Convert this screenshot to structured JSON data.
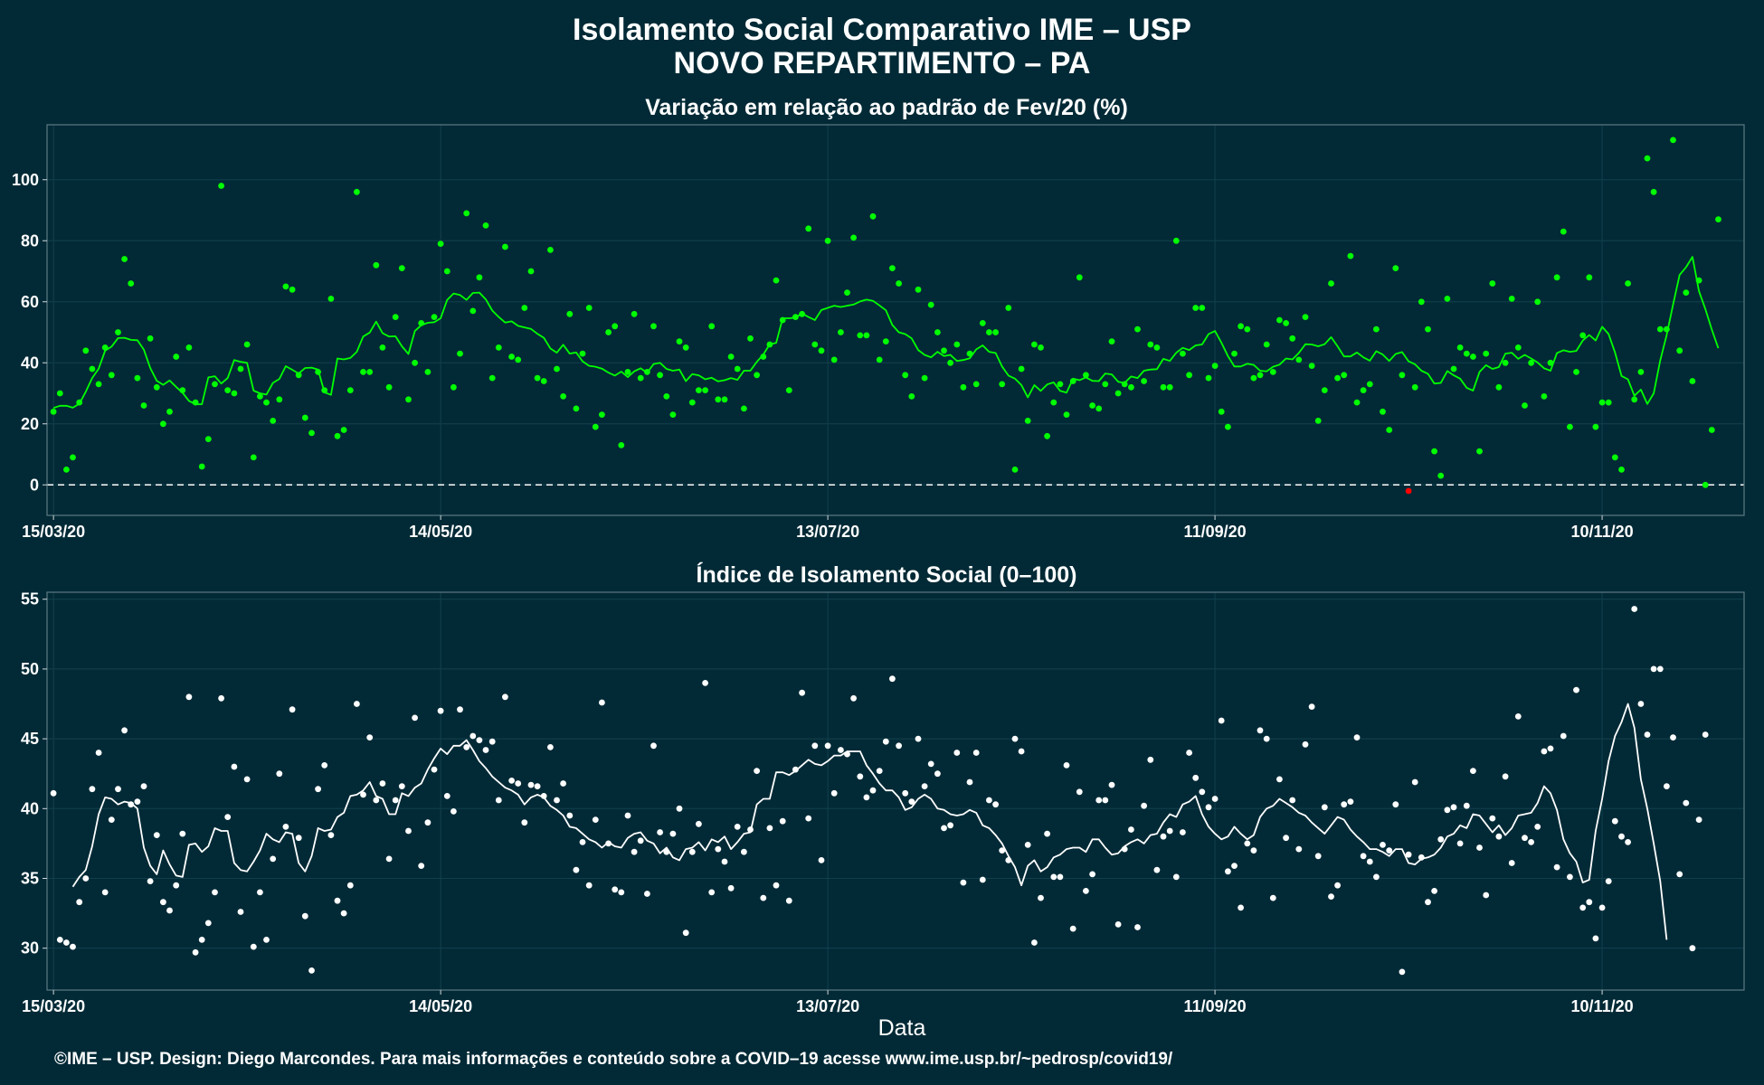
{
  "header": {
    "title_line1": "Isolamento Social Comparativo IME – USP",
    "title_line2": "NOVO REPARTIMENTO – PA"
  },
  "footer": {
    "credit": "©IME – USP. Design: Diego Marcondes. Para mais informações e conteúdo sobre a COVID–19 acesse www.ime.usp.br/~pedrosp/covid19/"
  },
  "colors": {
    "background": "#022a36",
    "panel_border": "#5d7a84",
    "grid": "#12404d",
    "variation_positive": "#00ff00",
    "variation_negative": "#ff0000",
    "index_series": "#ffffff"
  },
  "chart_data": [
    {
      "type": "scatter",
      "title": "Variação em relação ao padrão de Fev/20 (%)",
      "xlabel": "",
      "ylabel": "",
      "x_start": "2020-03-15",
      "x_end": "2020-11-30",
      "xlim": [
        "2020-03-14",
        "2020-12-02"
      ],
      "ylim": [
        -10,
        118
      ],
      "x_ticks": [
        "15/03/20",
        "14/05/20",
        "13/07/20",
        "11/09/20",
        "10/11/20"
      ],
      "y_ticks": [
        0,
        20,
        40,
        60,
        80,
        100
      ],
      "reference_line": 0,
      "series": [
        {
          "values": [
            24,
            30,
            5,
            9,
            27,
            44,
            38,
            33,
            45,
            36,
            50,
            74,
            66,
            35,
            26,
            48,
            32,
            20,
            24,
            42,
            31,
            45,
            27,
            6,
            15,
            33,
            98,
            31,
            30,
            38,
            46,
            9,
            29,
            27,
            21,
            28,
            65,
            64,
            36,
            22,
            17,
            37,
            31,
            61,
            16,
            18,
            31,
            96,
            37,
            37,
            72,
            45,
            32,
            55,
            71,
            28,
            40,
            53,
            37,
            55,
            79,
            70,
            32,
            43,
            89,
            57,
            68,
            85,
            35,
            45,
            78,
            42,
            41,
            58,
            70,
            35,
            34,
            77,
            38,
            29,
            56,
            25,
            43,
            58,
            19,
            23,
            50,
            52,
            13,
            37,
            56,
            35,
            37,
            52,
            36,
            29,
            23,
            47,
            45,
            27,
            31,
            31,
            52,
            28,
            28,
            42,
            38,
            25,
            48,
            36,
            42,
            46,
            67,
            54,
            31,
            55,
            56,
            84,
            46,
            44,
            80,
            41,
            50,
            63,
            81,
            49,
            49,
            88,
            41,
            47,
            71,
            66,
            36,
            29,
            64,
            35,
            59,
            50,
            44,
            40,
            46,
            32,
            43,
            33,
            53,
            50,
            50,
            33,
            58,
            5,
            38,
            21,
            46,
            45,
            16,
            27,
            33,
            23,
            34,
            68,
            36,
            26,
            25,
            33,
            47,
            30,
            33,
            32,
            51,
            34,
            46,
            45,
            32,
            32,
            80,
            43,
            36,
            58,
            58,
            35,
            39,
            24,
            19,
            43,
            52,
            51,
            35,
            36,
            46,
            37,
            54,
            53,
            48,
            41,
            55,
            39,
            21,
            31,
            66,
            35,
            36,
            75,
            27,
            31,
            33,
            51,
            24,
            18,
            71,
            36,
            -2,
            32,
            60,
            51,
            11,
            3,
            61,
            38,
            45,
            43,
            42,
            11,
            43,
            66,
            32,
            40,
            61,
            45,
            26,
            40,
            60,
            29,
            40,
            68,
            83,
            19,
            37,
            49,
            68,
            19,
            27,
            27,
            9,
            5,
            66,
            28,
            37,
            107,
            96,
            51,
            51,
            113,
            44,
            63,
            34,
            67,
            0,
            18,
            87
          ]
        },
        {
          "name": "",
          "type": "line",
          "values": [
            25.2,
            25.9,
            25.9,
            25.3,
            26.6,
            30.5,
            35.0,
            38.1,
            44.0,
            45.3,
            48.1,
            48.2,
            47.5,
            47.4,
            44.3,
            38.3,
            34.1,
            32.8,
            34.2,
            32.1,
            30.2,
            27.5,
            26.4,
            26.4,
            35.2,
            35.6,
            33.2,
            35.0,
            40.9,
            40.3,
            40.0,
            30.9,
            30.0,
            29.6,
            33.4,
            34.7,
            38.9,
            37.7,
            36.5,
            38.3,
            38.4,
            37.8,
            30.3,
            29.5,
            41.4,
            41.1,
            41.6,
            43.6,
            48.6,
            49.9,
            53.5,
            49.7,
            48.6,
            48.7,
            45.4,
            42.9,
            50.4,
            52.3,
            53.1,
            53.3,
            54.6,
            60.6,
            62.7,
            62.2,
            60.6,
            62.9,
            63.0,
            60.8,
            57.1,
            55.0,
            53.2,
            53.6,
            52.1,
            51.6,
            51.1,
            49.5,
            48.2,
            44.7,
            43.3,
            45.9,
            43.0,
            43.4,
            40.5,
            39.0,
            38.7,
            38.1,
            36.8,
            35.8,
            37.1,
            35.3,
            37.2,
            38.2,
            36.7,
            39.6,
            40.0,
            38.0,
            37.4,
            37.8,
            34.0,
            36.3,
            35.9,
            34.6,
            35.1,
            33.9,
            34.3,
            35.0,
            34.4,
            37.4,
            37.4,
            40.3,
            42.7,
            46.1,
            46.5,
            54.6,
            54.6,
            54.8,
            56.2,
            55.0,
            54.0,
            57.3,
            58.0,
            58.7,
            58.3,
            58.7,
            59.1,
            60.1,
            60.7,
            60.3,
            58.8,
            57.2,
            52.4,
            50.0,
            49.4,
            48.0,
            44.2,
            42.6,
            41.8,
            43.6,
            42.2,
            42.6,
            40.6,
            40.9,
            41.5,
            44.4,
            45.7,
            43.6,
            43.2,
            38.8,
            35.8,
            34.8,
            32.7,
            28.7,
            32.7,
            30.8,
            32.9,
            33.6,
            30.8,
            30.2,
            34.8,
            34.3,
            35.2,
            34.1,
            34.0,
            36.5,
            36.2,
            33.8,
            33.4,
            35.5,
            35.0,
            37.4,
            37.8,
            37.9,
            41.3,
            40.6,
            43.3,
            44.9,
            44.2,
            45.7,
            46.0,
            49.4,
            50.4,
            46.6,
            42.2,
            38.8,
            38.8,
            39.7,
            39.3,
            37.4,
            37.2,
            38.7,
            39.4,
            41.4,
            41.1,
            43.2,
            46.1,
            46.0,
            45.4,
            46.1,
            48.4,
            45.4,
            42.1,
            42.1,
            43.4,
            41.8,
            40.7,
            43.8,
            42.7,
            40.6,
            42.9,
            43.5,
            40.5,
            39.5,
            37.4,
            36.4,
            33.2,
            33.4,
            37.3,
            35.9,
            34.8,
            31.8,
            30.9,
            37.0,
            39.2,
            38.0,
            38.6,
            43.0,
            43.3,
            41.3,
            42.6,
            41.4,
            40.1,
            38.2,
            37.4,
            43.2,
            44.1,
            43.6,
            43.9,
            47.3,
            49.1,
            47.3,
            51.8,
            49.4,
            43.4,
            35.7,
            34.6,
            29.2,
            31.2,
            26.5,
            30.0,
            40.8,
            49.1,
            59.1,
            68.8,
            71.3,
            74.7,
            63.5,
            57.6,
            50.9,
            44.8
          ]
        }
      ]
    },
    {
      "type": "scatter",
      "title": "Índice de Isolamento Social (0–100)",
      "xlabel": "Data",
      "ylabel": "",
      "x_start": "2020-03-15",
      "x_end": "2020-11-30",
      "xlim": [
        "2020-03-14",
        "2020-12-02"
      ],
      "ylim": [
        27,
        55.5
      ],
      "x_ticks": [
        "15/03/20",
        "14/05/20",
        "13/07/20",
        "11/09/20",
        "10/11/20"
      ],
      "y_ticks": [
        30,
        35,
        40,
        45,
        50,
        55
      ],
      "series": [
        {
          "values": [
            41.1,
            30.6,
            30.4,
            30.1,
            33.3,
            35.0,
            41.4,
            44.0,
            34.0,
            39.2,
            41.4,
            45.6,
            40.3,
            40.5,
            41.6,
            34.8,
            38.1,
            33.3,
            32.7,
            34.5,
            38.2,
            48.0,
            29.7,
            30.6,
            31.8,
            34.0,
            47.9,
            39.4,
            43.0,
            32.6,
            42.1,
            30.1,
            34.0,
            30.6,
            36.4,
            42.5,
            38.7,
            47.1,
            37.9,
            32.3,
            28.4,
            41.4,
            43.1,
            38.1,
            33.4,
            32.5,
            34.5,
            47.5,
            41.0,
            45.1,
            40.6,
            41.8,
            36.4,
            40.6,
            41.6,
            38.4,
            46.5,
            35.9,
            39.0,
            42.8,
            47.0,
            40.9,
            39.8,
            47.1,
            44.4,
            45.2,
            44.9,
            44.2,
            44.8,
            40.6,
            48.0,
            42.0,
            41.8,
            39.0,
            41.7,
            41.6,
            40.9,
            44.4,
            40.6,
            41.8,
            39.5,
            35.6,
            37.6,
            34.5,
            39.2,
            47.6,
            37.5,
            34.2,
            34.0,
            39.5,
            36.9,
            37.7,
            33.9,
            44.5,
            38.3,
            36.9,
            38.2,
            40.0,
            31.1,
            36.9,
            38.9,
            49.0,
            34.0,
            37.1,
            36.2,
            34.3,
            38.7,
            36.9,
            38.5,
            42.7,
            33.6,
            38.6,
            34.5,
            39.1,
            33.4,
            42.8,
            48.3,
            39.3,
            44.5,
            36.3,
            44.5,
            41.1,
            44.2,
            43.9,
            47.9,
            42.3,
            40.8,
            41.3,
            42.7,
            44.8,
            49.3,
            44.5,
            41.1,
            40.5,
            45.0,
            41.6,
            43.2,
            42.5,
            38.6,
            38.8,
            44.0,
            34.7,
            41.9,
            44.0,
            34.9,
            40.6,
            40.3,
            37.0,
            36.3,
            45.0,
            44.1,
            37.4,
            30.4,
            33.6,
            38.2,
            35.1,
            35.1,
            43.1,
            31.4,
            41.2,
            34.1,
            35.3,
            40.6,
            40.6,
            41.7,
            31.7,
            37.1,
            38.5,
            31.5,
            40.2,
            43.5,
            35.6,
            38.0,
            38.4,
            35.1,
            38.3,
            44.0,
            42.2,
            41.2,
            40.1,
            40.7,
            46.3,
            35.5,
            35.9,
            32.9,
            37.5,
            37.0,
            45.6,
            45.0,
            33.6,
            42.1,
            37.9,
            40.6,
            37.1,
            44.6,
            47.3,
            36.6,
            40.1,
            33.7,
            34.5,
            40.3,
            40.5,
            45.1,
            36.6,
            36.2,
            35.1,
            37.4,
            37.0,
            40.3,
            28.3,
            36.7,
            41.9,
            36.5,
            33.3,
            34.1,
            37.8,
            39.9,
            40.1,
            37.5,
            40.2,
            42.7,
            37.2,
            33.8,
            39.3,
            38.0,
            42.3,
            36.1,
            46.6,
            37.9,
            37.6,
            38.7,
            44.1,
            44.3,
            35.8,
            45.2,
            35.1,
            48.5,
            32.9,
            33.3,
            30.7,
            32.9,
            34.8,
            39.1,
            38.0,
            37.6,
            54.3,
            47.5,
            45.3,
            50.0,
            50.0,
            41.6,
            45.1,
            35.3,
            40.4,
            30.0,
            39.2,
            45.3
          ]
        },
        {
          "name": "",
          "type": "line",
          "values": [
            null,
            null,
            null,
            34.4,
            35.1,
            35.6,
            37.3,
            39.6,
            40.8,
            40.7,
            40.3,
            40.5,
            40.4,
            40.0,
            37.2,
            35.9,
            35.3,
            37.0,
            36.0,
            35.2,
            35.1,
            37.4,
            37.5,
            36.9,
            37.3,
            38.6,
            38.4,
            38.4,
            36.1,
            35.6,
            35.5,
            36.2,
            37.0,
            38.2,
            37.8,
            37.6,
            38.3,
            38.2,
            36.1,
            35.5,
            36.6,
            38.6,
            38.4,
            38.5,
            39.4,
            39.7,
            40.9,
            41.0,
            41.3,
            41.9,
            40.9,
            40.7,
            39.6,
            39.6,
            41.1,
            40.9,
            41.5,
            41.8,
            42.8,
            43.6,
            44.3,
            43.9,
            44.5,
            44.5,
            44.9,
            44.2,
            43.4,
            42.9,
            42.3,
            41.9,
            41.5,
            41.3,
            41.0,
            40.3,
            40.8,
            41.0,
            40.8,
            40.2,
            39.9,
            39.5,
            38.7,
            38.6,
            38.2,
            37.8,
            37.6,
            37.2,
            37.6,
            37.3,
            37.2,
            37.9,
            38.2,
            38.3,
            37.7,
            37.5,
            36.8,
            37.2,
            36.5,
            36.3,
            37.1,
            37.2,
            37.6,
            37.0,
            37.8,
            37.6,
            38.0,
            37.1,
            37.6,
            38.2,
            38.3,
            40.3,
            40.7,
            40.7,
            42.6,
            42.6,
            42.4,
            42.7,
            43.1,
            43.5,
            43.2,
            43.1,
            43.4,
            43.8,
            43.8,
            44.1,
            44.1,
            44.1,
            43.1,
            42.5,
            41.8,
            41.3,
            41.3,
            40.8,
            39.9,
            40.1,
            40.7,
            41.0,
            40.7,
            40.0,
            39.9,
            39.6,
            39.5,
            39.6,
            39.9,
            39.7,
            38.8,
            38.6,
            38.1,
            37.5,
            36.6,
            35.8,
            34.5,
            35.9,
            36.3,
            35.5,
            35.8,
            36.5,
            36.7,
            37.1,
            37.2,
            37.2,
            36.9,
            37.8,
            37.8,
            37.2,
            36.7,
            36.8,
            37.3,
            37.6,
            37.8,
            37.5,
            38.1,
            38.2,
            39.0,
            39.6,
            39.4,
            40.3,
            40.5,
            40.9,
            39.6,
            38.7,
            38.2,
            37.8,
            38.0,
            38.7,
            38.2,
            37.8,
            38.1,
            39.4,
            40.0,
            40.2,
            40.7,
            40.4,
            40.1,
            39.7,
            39.5,
            39.0,
            38.6,
            38.2,
            38.8,
            39.4,
            39.2,
            38.5,
            38.0,
            37.6,
            37.1,
            37.1,
            36.9,
            36.6,
            37.1,
            37.1,
            36.1,
            36.0,
            36.4,
            36.5,
            36.7,
            37.2,
            38.0,
            38.2,
            38.8,
            38.6,
            39.6,
            39.5,
            38.9,
            38.3,
            38.8,
            38.1,
            38.6,
            39.5,
            39.6,
            39.7,
            40.4,
            41.6,
            41.1,
            39.9,
            37.8,
            36.8,
            36.2,
            34.7,
            34.9,
            38.4,
            40.7,
            43.4,
            45.2,
            46.2,
            47.5,
            45.8,
            42.1,
            40.0,
            37.5,
            34.8,
            30.6
          ]
        }
      ]
    }
  ]
}
